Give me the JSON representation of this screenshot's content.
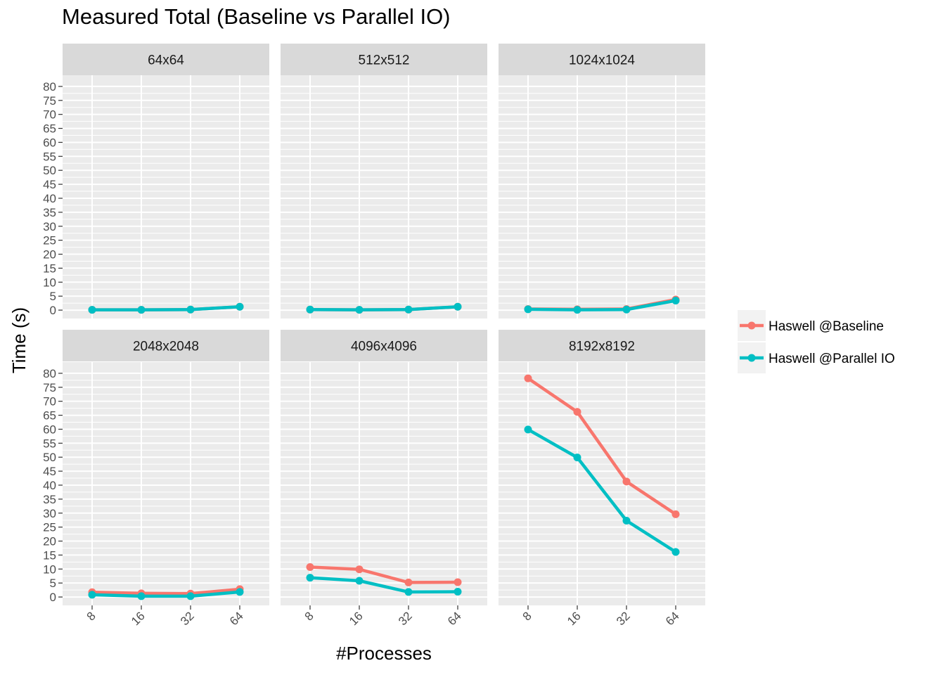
{
  "chart_data": {
    "type": "line",
    "title": "Measured Total (Baseline vs Parallel IO)",
    "xlabel": "#Processes",
    "ylabel": "Time (s)",
    "x_categories": [
      "8",
      "16",
      "32",
      "64"
    ],
    "y_ticks": [
      0,
      5,
      10,
      15,
      20,
      25,
      30,
      35,
      40,
      45,
      50,
      55,
      60,
      65,
      70,
      75,
      80
    ],
    "ylim": [
      -3,
      84
    ],
    "grid": true,
    "legend_position": "right",
    "colors": {
      "Haswell @Baseline": "#F8766D",
      "Haswell @Parallel IO": "#00BFC4"
    },
    "series_names": [
      "Haswell @Baseline",
      "Haswell @Parallel IO"
    ],
    "panels": [
      {
        "label": "64x64",
        "series": [
          {
            "name": "Haswell @Baseline",
            "values": [
              0.1,
              0.1,
              0.2,
              1.2
            ]
          },
          {
            "name": "Haswell @Parallel IO",
            "values": [
              0.1,
              0.1,
              0.2,
              1.2
            ]
          }
        ]
      },
      {
        "label": "512x512",
        "series": [
          {
            "name": "Haswell @Baseline",
            "values": [
              0.2,
              0.1,
              0.2,
              1.2
            ]
          },
          {
            "name": "Haswell @Parallel IO",
            "values": [
              0.2,
              0.1,
              0.2,
              1.2
            ]
          }
        ]
      },
      {
        "label": "1024x1024",
        "series": [
          {
            "name": "Haswell @Baseline",
            "values": [
              0.4,
              0.3,
              0.4,
              3.8
            ]
          },
          {
            "name": "Haswell @Parallel IO",
            "values": [
              0.3,
              0.1,
              0.2,
              3.4
            ]
          }
        ]
      },
      {
        "label": "2048x2048",
        "series": [
          {
            "name": "Haswell @Baseline",
            "values": [
              1.7,
              1.3,
              1.2,
              2.8
            ]
          },
          {
            "name": "Haswell @Parallel IO",
            "values": [
              0.8,
              0.3,
              0.3,
              1.8
            ]
          }
        ]
      },
      {
        "label": "4096x4096",
        "series": [
          {
            "name": "Haswell @Baseline",
            "values": [
              10.7,
              9.9,
              5.2,
              5.3
            ]
          },
          {
            "name": "Haswell @Parallel IO",
            "values": [
              6.9,
              5.8,
              1.8,
              1.9
            ]
          }
        ]
      },
      {
        "label": "8192x8192",
        "series": [
          {
            "name": "Haswell @Baseline",
            "values": [
              78.2,
              66.2,
              41.3,
              29.6
            ]
          },
          {
            "name": "Haswell @Parallel IO",
            "values": [
              59.9,
              49.9,
              27.3,
              16.1
            ]
          }
        ]
      }
    ]
  }
}
